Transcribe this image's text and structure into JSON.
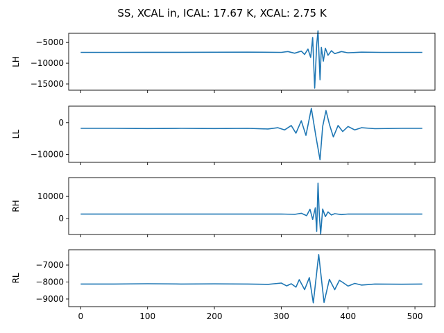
{
  "chart_data": {
    "type": "line",
    "title": "SS, XCAL in, ICAL: 17.67 K, XCAL: 2.75 K",
    "sharex": true,
    "xlim": [
      -18,
      530
    ],
    "xticks": [
      0,
      100,
      200,
      300,
      400,
      500
    ],
    "xtick_labels": [
      "0",
      "100",
      "200",
      "300",
      "400",
      "500"
    ],
    "grid": false,
    "line_color": "#1f77b4",
    "panels": [
      {
        "ylabel": "LH",
        "ylim": [
          -16500,
          -2800
        ],
        "yticks": [
          -5000,
          -10000,
          -15000
        ],
        "ytick_labels": [
          "−5000",
          "−10000",
          "−15000"
        ],
        "series": [
          {
            "x": [
              0,
              50,
              100,
              150,
              200,
              250,
              300,
              310,
              320,
              330,
              335,
              340,
              344,
              347,
              350,
              353,
              355,
              358,
              360,
              363,
              366,
              370,
              375,
              380,
              390,
              400,
              420,
              450,
              511
            ],
            "y": [
              -7400,
              -7400,
              -7380,
              -7370,
              -7360,
              -7350,
              -7400,
              -7200,
              -7600,
              -7100,
              -7900,
              -6600,
              -8600,
              -3800,
              -16000,
              -5500,
              -2200,
              -14000,
              -6200,
              -9500,
              -6400,
              -8100,
              -7000,
              -7700,
              -7200,
              -7500,
              -7350,
              -7400,
              -7400
            ]
          }
        ]
      },
      {
        "ylabel": "LL",
        "ylim": [
          -12500,
          5200
        ],
        "yticks": [
          0,
          -10000
        ],
        "ytick_labels": [
          "0",
          "−10000"
        ],
        "series": [
          {
            "x": [
              0,
              50,
              100,
              150,
              200,
              250,
              280,
              295,
              305,
              315,
              322,
              330,
              337,
              345,
              352,
              358,
              362,
              367,
              372,
              378,
              385,
              392,
              400,
              410,
              420,
              440,
              480,
              511
            ],
            "y": [
              -1800,
              -1800,
              -1850,
              -1800,
              -1850,
              -1800,
              -2000,
              -1600,
              -2300,
              -900,
              -3300,
              600,
              -4000,
              4500,
              -4500,
              -11700,
              -1200,
              3800,
              -500,
              -4500,
              -900,
              -2800,
              -1200,
              -2300,
              -1600,
              -1900,
              -1800,
              -1800
            ]
          }
        ]
      },
      {
        "ylabel": "RH",
        "ylim": [
          -7200,
          18500
        ],
        "yticks": [
          10000,
          0
        ],
        "ytick_labels": [
          "10000",
          "0"
        ],
        "series": [
          {
            "x": [
              0,
              50,
              100,
              150,
              200,
              250,
              300,
              320,
              330,
              338,
              343,
              347,
              351,
              353,
              355,
              357,
              359,
              362,
              366,
              370,
              375,
              380,
              390,
              400,
              420,
              460,
              511
            ],
            "y": [
              2000,
              2000,
              2000,
              2000,
              2000,
              2000,
              2050,
              1900,
              2400,
              1300,
              4200,
              -400,
              4800,
              -5800,
              16000,
              1500,
              -7000,
              4300,
              900,
              3000,
              1600,
              2200,
              1800,
              2050,
              2000,
              2000,
              2000
            ]
          }
        ]
      },
      {
        "ylabel": "RL",
        "ylim": [
          -9450,
          -6100
        ],
        "yticks": [
          -7000,
          -8000,
          -9000
        ],
        "ytick_labels": [
          "−7000",
          "−8000",
          "−9000"
        ],
        "series": [
          {
            "x": [
              0,
              50,
              100,
              150,
              200,
              250,
              280,
              300,
              308,
              315,
              322,
              327,
              335,
              342,
              348,
              356,
              364,
              372,
              380,
              387,
              392,
              400,
              410,
              420,
              440,
              480,
              511
            ],
            "y": [
              -8120,
              -8120,
              -8100,
              -8120,
              -8110,
              -8120,
              -8140,
              -8060,
              -8230,
              -8100,
              -8300,
              -7860,
              -8450,
              -7740,
              -9230,
              -6380,
              -9210,
              -7840,
              -8450,
              -7900,
              -8020,
              -8240,
              -8080,
              -8180,
              -8120,
              -8130,
              -8120
            ]
          }
        ]
      }
    ]
  }
}
